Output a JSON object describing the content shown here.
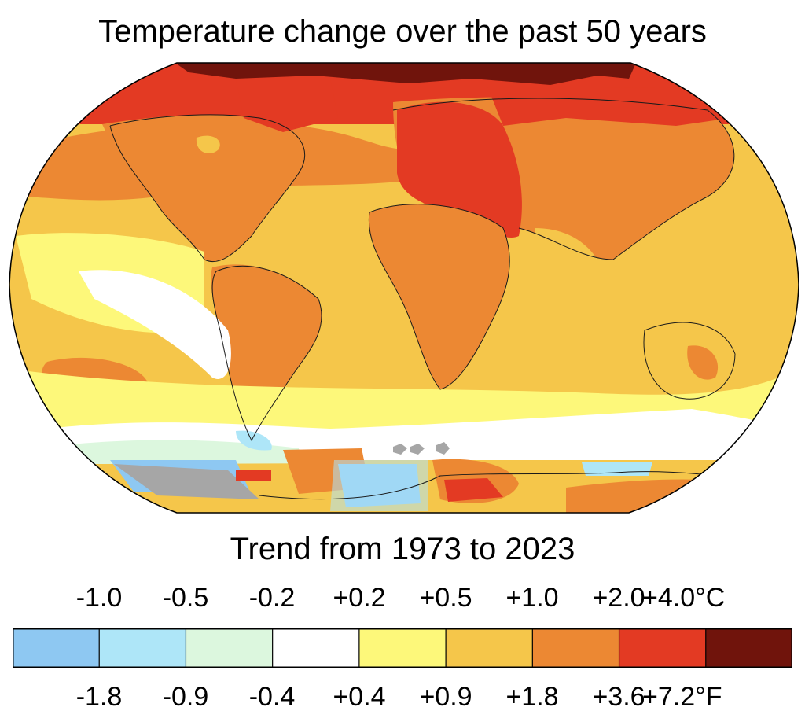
{
  "title": "Temperature change over the past 50 years",
  "subtitle": "Trend from 1973 to 2023",
  "legend": {
    "celsius_labels": [
      "-1.0",
      "-0.5",
      "-0.2",
      "+0.2",
      "+0.5",
      "+1.0",
      "+2.0",
      "+4.0°C"
    ],
    "fahrenheit_labels": [
      "-1.8",
      "-0.9",
      "-0.4",
      "+0.4",
      "+0.9",
      "+1.8",
      "+3.6",
      "+7.2°F"
    ],
    "bins": [
      {
        "color": "#8ec8f2"
      },
      {
        "color": "#aee6f8"
      },
      {
        "color": "#dcf7de"
      },
      {
        "color": "#ffffff"
      },
      {
        "color": "#fdf87a"
      },
      {
        "color": "#f5c64a"
      },
      {
        "color": "#ec8833"
      },
      {
        "color": "#e33a23"
      },
      {
        "color": "#70140c"
      }
    ]
  },
  "map": {
    "no_data_color": "#a6a6a6",
    "coastline_color": "#1a1a1a",
    "projection": "Robinson"
  }
}
